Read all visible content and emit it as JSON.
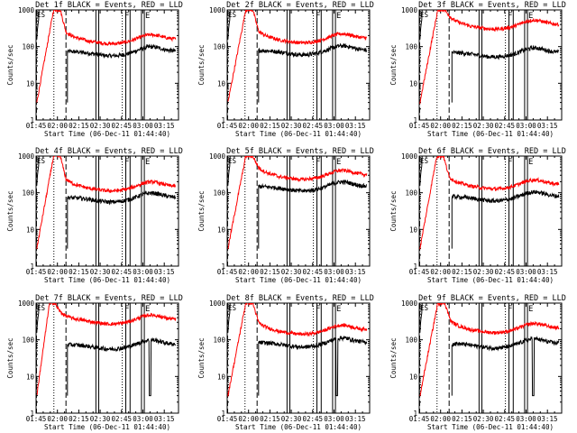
{
  "chart_data": {
    "type": "line",
    "yscale": "log",
    "ylim": [
      1,
      1000
    ],
    "y_ticks": [
      {
        "value": 1,
        "label": "1"
      },
      {
        "value": 10,
        "label": "10"
      },
      {
        "value": 100,
        "label": "100"
      },
      {
        "value": 1000,
        "label": "1000"
      }
    ],
    "ylabel": "Counts/sec",
    "xlabel": "Start Time (06-Dec-11 01:44:40)",
    "x_ticks": [
      "01:45",
      "02:00",
      "02:15",
      "02:30",
      "02:45",
      "03:00",
      "03:15"
    ],
    "x_minutes": [
      0,
      15,
      30,
      45,
      60,
      75,
      90
    ],
    "xlim_minutes": [
      0,
      100
    ],
    "colors": {
      "black_series": "#000000",
      "red_series": "#ff0000"
    },
    "series_legend": "BLACK = Events, RED = LLD",
    "panels": [
      {
        "title": "Det 1f BLACK = Events, RED = LLD",
        "events_level": 75,
        "lld_level": 160,
        "lld_rise_end": 17,
        "events_start": 22,
        "markers": {
          "dotted": 12.5,
          "dashed": 21,
          "solid": [
            42,
            44,
            63,
            66,
            74,
            76
          ],
          "F": 65,
          "E": 77
        },
        "extra_dip": null
      },
      {
        "title": "Det 2f BLACK = Events, RED = LLD",
        "events_level": 80,
        "lld_level": 170,
        "lld_rise_end": 18,
        "events_start": 22,
        "markers": {
          "dotted": 12.5,
          "dashed": 21,
          "solid": [
            42,
            44,
            63,
            66,
            74,
            76
          ],
          "F": 65,
          "E": 77
        },
        "extra_dip": null
      },
      {
        "title": "Det 3f BLACK = Events, RED = LLD",
        "events_level": 70,
        "lld_level": 400,
        "lld_rise_end": 18,
        "events_start": 23,
        "markers": {
          "dotted": 12.5,
          "dashed": 21,
          "solid": [
            42,
            44,
            63,
            66,
            74,
            76
          ],
          "F": 65,
          "E": 77
        },
        "extra_dip": null
      },
      {
        "title": "Det 4f BLACK = Events, RED = LLD",
        "events_level": 75,
        "lld_level": 150,
        "lld_rise_end": 17,
        "events_start": 22,
        "markers": {
          "dotted": 12.5,
          "dashed": 21,
          "solid": [
            42,
            44,
            63,
            66,
            74,
            76
          ],
          "F": 65,
          "E": 77
        },
        "extra_dip": null
      },
      {
        "title": "Det 5f BLACK = Events, RED = LLD",
        "events_level": 150,
        "lld_level": 310,
        "lld_rise_end": 18,
        "events_start": 22,
        "markers": {
          "dotted": 12.5,
          "dashed": 21,
          "solid": [
            42,
            44,
            63,
            66,
            74,
            76
          ],
          "F": 65,
          "E": 77
        },
        "extra_dip": null
      },
      {
        "title": "Det 6f BLACK = Events, RED = LLD",
        "events_level": 80,
        "lld_level": 170,
        "lld_rise_end": 17,
        "events_start": 23,
        "markers": {
          "dotted": 12.5,
          "dashed": 21,
          "solid": [
            42,
            44,
            63,
            66,
            74,
            76
          ],
          "F": 65,
          "E": 77
        },
        "extra_dip": null
      },
      {
        "title": "Det 7f BLACK = Events, RED = LLD",
        "events_level": 75,
        "lld_level": 360,
        "lld_rise_end": 13,
        "events_start": 22,
        "markers": {
          "dotted": 12.5,
          "dashed": 21,
          "solid": [
            42,
            44,
            63,
            66,
            74,
            76
          ],
          "F": 65,
          "E": 77
        },
        "extra_dip": 80
      },
      {
        "title": "Det 8f BLACK = Events, RED = LLD",
        "events_level": 85,
        "lld_level": 190,
        "lld_rise_end": 18,
        "events_start": 22,
        "markers": {
          "dotted": 12.5,
          "dashed": 21,
          "solid": [
            42,
            44,
            63,
            66,
            74,
            76
          ],
          "F": 65,
          "E": 77
        },
        "extra_dip": 77
      },
      {
        "title": "Det 9f BLACK = Events, RED = LLD",
        "events_level": 80,
        "lld_level": 210,
        "lld_rise_end": 18,
        "events_start": 23,
        "markers": {
          "dotted": 12.5,
          "dashed": 21,
          "solid": [
            42,
            44,
            63,
            66,
            74,
            76
          ],
          "F": 65,
          "E": 77
        },
        "extra_dip": 80
      }
    ]
  }
}
